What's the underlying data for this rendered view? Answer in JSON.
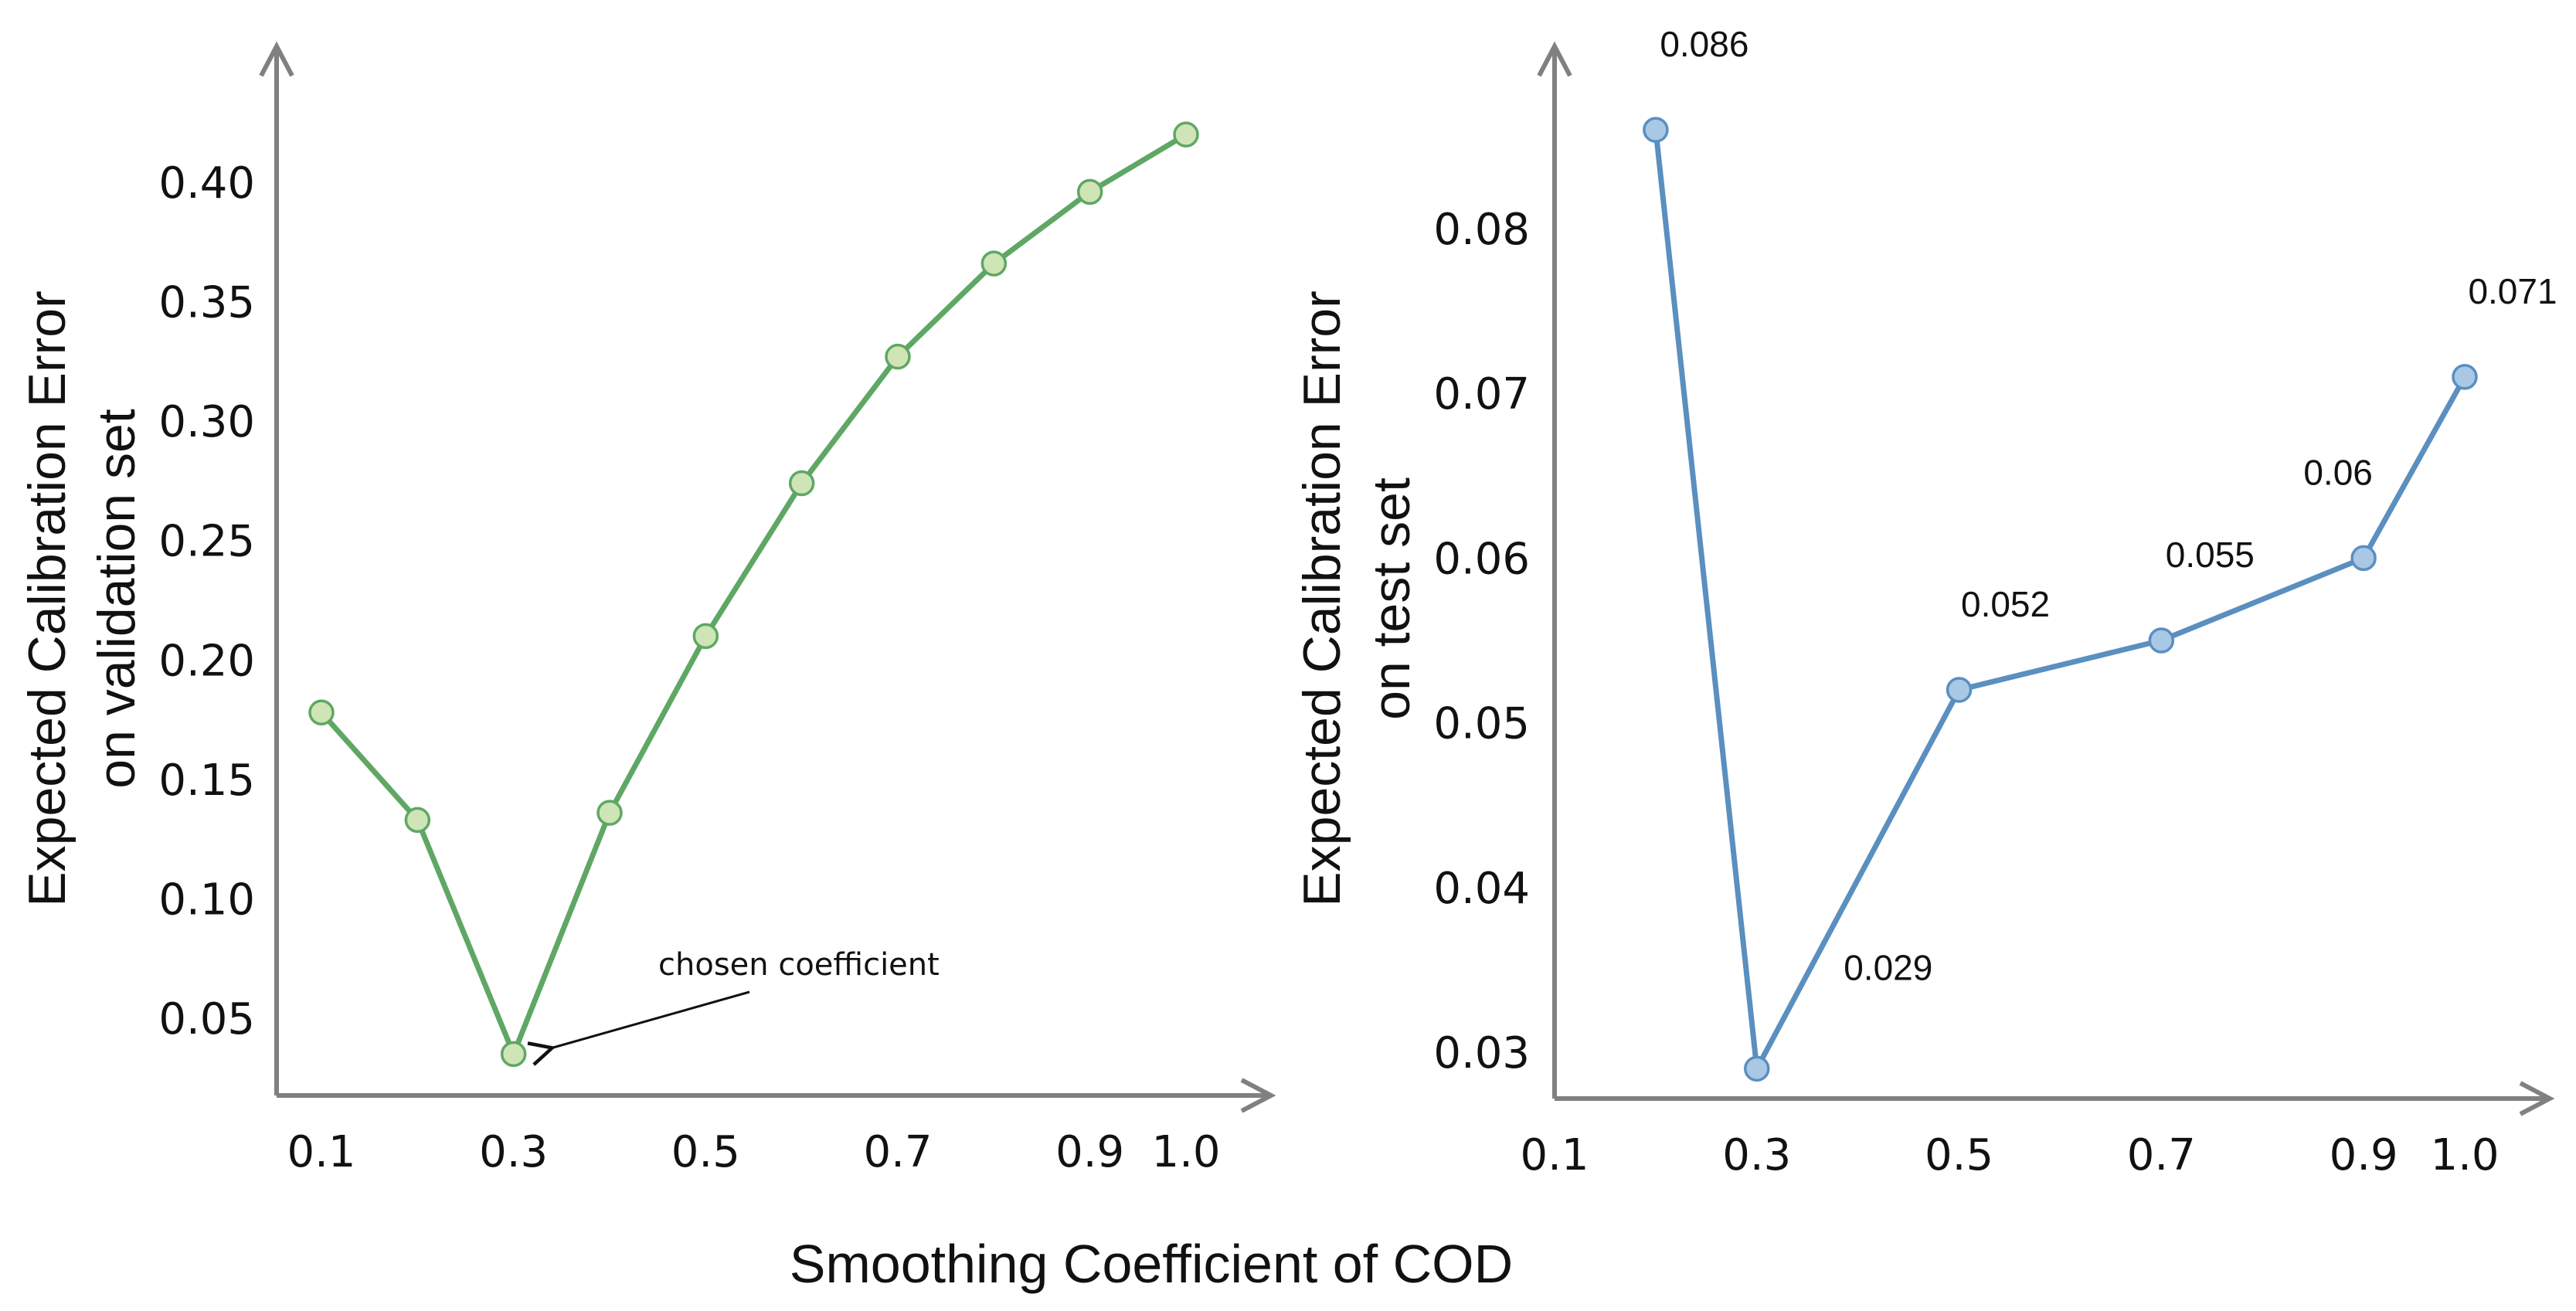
{
  "figure": {
    "shared_xlabel": "Smoothing Coefficient of COD"
  },
  "chart_data": [
    {
      "type": "line",
      "ylabel_lines": [
        "Expected Calibration Error",
        "on validation set"
      ],
      "xlabel": "",
      "x_ticks": [
        "0.1",
        "0.3",
        "0.5",
        "0.7",
        "0.9",
        "1.0"
      ],
      "y_ticks": [
        "0.05",
        "0.10",
        "0.15",
        "0.20",
        "0.25",
        "0.30",
        "0.35",
        "0.40"
      ],
      "xlim": [
        0.1,
        1.0
      ],
      "ylim": [
        0.05,
        0.4
      ],
      "grid": false,
      "line_color": "#5fa764",
      "marker_fill": "#cfe5b5",
      "series": [
        {
          "x": [
            0.1,
            0.2,
            0.3,
            0.4,
            0.5,
            0.6,
            0.7,
            0.8,
            0.9,
            1.0
          ],
          "values": [
            0.178,
            0.133,
            0.035,
            0.136,
            0.21,
            0.274,
            0.327,
            0.366,
            0.396,
            0.42
          ]
        }
      ],
      "annotation": {
        "text": "chosen coefficient",
        "x": 0.3,
        "y": 0.035
      }
    },
    {
      "type": "line",
      "ylabel_lines": [
        "Expected Calibration Error",
        "on test set"
      ],
      "xlabel": "",
      "x_ticks": [
        "0.1",
        "0.3",
        "0.5",
        "0.7",
        "0.9",
        "1.0"
      ],
      "y_ticks": [
        "0.03",
        "0.04",
        "0.05",
        "0.06",
        "0.07",
        "0.08"
      ],
      "xlim": [
        0.1,
        1.0
      ],
      "ylim": [
        0.03,
        0.08
      ],
      "grid": false,
      "line_color": "#5a8fbf",
      "marker_fill": "#a9c8e6",
      "series": [
        {
          "x": [
            0.2,
            0.3,
            0.5,
            0.7,
            0.9,
            1.0
          ],
          "values": [
            0.086,
            0.029,
            0.052,
            0.055,
            0.06,
            0.071
          ],
          "labels": [
            "0.086",
            "0.029",
            "0.052",
            "0.055",
            "0.06",
            "0.071"
          ]
        }
      ]
    }
  ]
}
